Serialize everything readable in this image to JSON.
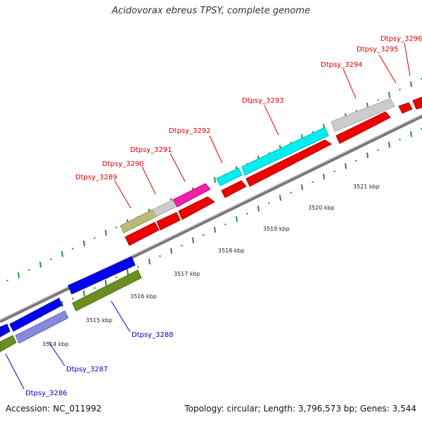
{
  "title": "Acidovorax ebreus TPSY, complete genome",
  "footer": {
    "accession": "Accession: NC_011992",
    "summary": "Topology: circular; Length: 3,796,573 bp; Genes: 3,544"
  },
  "colors": {
    "backbone": "#888888",
    "label_top": "#dd0000",
    "label_bottom": "#0000cc",
    "tick": "#2a8a2a"
  },
  "scale_labels": [
    "3514 kbp",
    "3515 kbp",
    "3516 kbp",
    "3517 kbp",
    "3518 kbp",
    "3519 kbp",
    "3520 kbp",
    "3521 kbp"
  ],
  "genes_top": [
    {
      "name": "Dtpsy_3289",
      "color": "#bbbb77"
    },
    {
      "name": "Dtpsy_3290",
      "color": "#cccccc"
    },
    {
      "name": "Dtpsy_3291",
      "color": "#ee22aa"
    },
    {
      "name": "Dtpsy_3292",
      "color": "#00eeee"
    },
    {
      "name": "Dtpsy_3293",
      "color": "#00eeee"
    },
    {
      "name": "Dtpsy_3294",
      "color": "#bbbbbb"
    },
    {
      "name": "Dtpsy_3295",
      "color": "#dddddd"
    },
    {
      "name": "Dtpsy_3296",
      "color": "#dddddd"
    }
  ],
  "genes_bottom": [
    {
      "name": "Dtpsy_3286",
      "color": "#6b8e23"
    },
    {
      "name": "Dtpsy_3287",
      "color": "#8888dd"
    },
    {
      "name": "Dtpsy_3288",
      "color": "#6b8e23"
    }
  ]
}
